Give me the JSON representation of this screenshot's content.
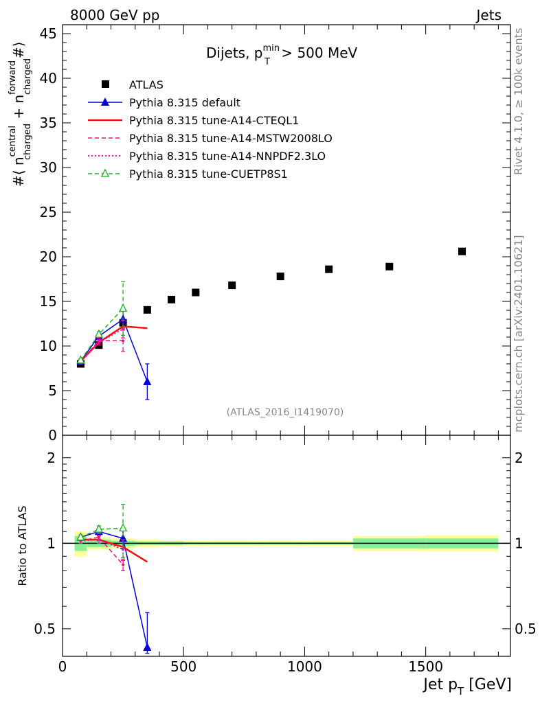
{
  "header": {
    "left": "8000 GeV pp",
    "right": "Jets"
  },
  "side_labels": {
    "rivet": "Rivet 4.1.0, ≥ 100k events",
    "mcplots": "mcplots.cern.ch [arXiv:2401.10621]"
  },
  "chart_data": [
    {
      "type": "line",
      "panel": "main",
      "title": "Dijets, p_T^min > 500 MeV",
      "title_parts": {
        "main": "Dijets, p",
        "sup": "min",
        "sub": "T",
        "tail": " > 500 MeV"
      },
      "ylabel": "#⟨ n^central_charged + n^forward_charged #⟩",
      "ylabel_parts": {
        "pre": "#⟨ n",
        "sup1": "central",
        "sub1": "charged",
        "mid": " + n",
        "sup2": "forward",
        "sub2": "charged",
        "post": "#⟩"
      },
      "xlim": [
        0,
        1850
      ],
      "ylim": [
        0,
        46
      ],
      "yticks": [
        "0",
        "5",
        "10",
        "15",
        "20",
        "25",
        "30",
        "35",
        "40",
        "45"
      ],
      "watermark": "(ATLAS_2016_I1419070)",
      "legend_position": "top-left",
      "series": [
        {
          "name": "ATLAS",
          "style": "data",
          "color": "#000000",
          "points": [
            [
              75,
              8.0
            ],
            [
              150,
              10.1
            ],
            [
              250,
              12.6
            ],
            [
              350,
              14.05
            ],
            [
              450,
              15.2
            ],
            [
              550,
              16.0
            ],
            [
              700,
              16.8
            ],
            [
              900,
              17.8
            ],
            [
              1100,
              18.6
            ],
            [
              1350,
              18.9
            ],
            [
              1650,
              20.6
            ]
          ]
        },
        {
          "name": "Pythia 8.315 default",
          "style": "line-triangle",
          "color": "#0000dd",
          "points": [
            [
              75,
              8.3
            ],
            [
              150,
              11.1
            ],
            [
              250,
              13.0
            ],
            [
              350,
              6.0
            ]
          ],
          "errors": [
            0.2,
            0.3,
            1.0,
            2.0
          ]
        },
        {
          "name": "Pythia 8.315 tune-A14-CTEQL1",
          "style": "solid-thick",
          "color": "#ee1111",
          "points": [
            [
              75,
              8.3
            ],
            [
              150,
              10.4
            ],
            [
              250,
              12.2
            ],
            [
              350,
              12.0
            ]
          ]
        },
        {
          "name": "Pythia 8.315 tune-A14-MSTW2008LO",
          "style": "dashed",
          "color": "#ee1177",
          "points": [
            [
              75,
              8.3
            ],
            [
              150,
              10.6
            ],
            [
              250,
              10.6
            ]
          ],
          "errors": [
            0.2,
            0.3,
            1.2
          ]
        },
        {
          "name": "Pythia 8.315 tune-A14-NNPDF2.3LO",
          "style": "dotted",
          "color": "#ee11aa",
          "points": [
            [
              75,
              8.2
            ],
            [
              150,
              10.4
            ],
            [
              250,
              11.9
            ]
          ],
          "errors": [
            0.2,
            0.3,
            1.0
          ]
        },
        {
          "name": "Pythia 8.315 tune-CUETP8S1",
          "style": "dashed-open-triangle",
          "color": "#22aa22",
          "points": [
            [
              75,
              8.4
            ],
            [
              150,
              11.3
            ],
            [
              250,
              14.2
            ]
          ],
          "errors": [
            0.2,
            0.3,
            3.0
          ]
        }
      ]
    },
    {
      "type": "line",
      "panel": "ratio",
      "ylabel": "Ratio to ATLAS",
      "xlabel": "Jet p_T [GeV]",
      "xlabel_parts": {
        "main": "Jet p",
        "sub": "T",
        "tail": " [GeV]"
      },
      "xlim": [
        0,
        1850
      ],
      "ylim": [
        0.4,
        2.4
      ],
      "log_y": true,
      "yticks": [
        "0.5",
        "1",
        "2"
      ],
      "xticks": [
        "0",
        "500",
        "1000",
        "1500"
      ],
      "bands": [
        {
          "x": [
            50,
            100
          ],
          "inner": [
            0.94,
            1.06
          ],
          "outer": [
            0.9,
            1.1
          ]
        },
        {
          "x": [
            100,
            200
          ],
          "inner": [
            0.97,
            1.03
          ],
          "outer": [
            0.95,
            1.05
          ]
        },
        {
          "x": [
            200,
            300
          ],
          "inner": [
            0.98,
            1.02
          ],
          "outer": [
            0.96,
            1.04
          ]
        },
        {
          "x": [
            300,
            400
          ],
          "inner": [
            0.985,
            1.015
          ],
          "outer": [
            0.97,
            1.03
          ]
        },
        {
          "x": [
            400,
            500
          ],
          "inner": [
            0.985,
            1.015
          ],
          "outer": [
            0.975,
            1.025
          ]
        },
        {
          "x": [
            500,
            600
          ],
          "inner": [
            0.99,
            1.01
          ],
          "outer": [
            0.98,
            1.02
          ]
        },
        {
          "x": [
            600,
            800
          ],
          "inner": [
            0.99,
            1.01
          ],
          "outer": [
            0.98,
            1.02
          ]
        },
        {
          "x": [
            800,
            1000
          ],
          "inner": [
            0.99,
            1.01
          ],
          "outer": [
            0.98,
            1.02
          ]
        },
        {
          "x": [
            1000,
            1200
          ],
          "inner": [
            0.99,
            1.01
          ],
          "outer": [
            0.98,
            1.02
          ]
        },
        {
          "x": [
            1200,
            1500
          ],
          "inner": [
            0.96,
            1.04
          ],
          "outer": [
            0.94,
            1.06
          ]
        },
        {
          "x": [
            1500,
            1800
          ],
          "inner": [
            0.96,
            1.04
          ],
          "outer": [
            0.935,
            1.065
          ]
        }
      ],
      "series": [
        {
          "name": "Pythia 8.315 default",
          "color": "#0000dd",
          "style": "line-triangle",
          "points": [
            [
              75,
              1.05
            ],
            [
              150,
              1.1
            ],
            [
              250,
              1.04
            ],
            [
              350,
              0.43
            ]
          ],
          "errors": [
            0.02,
            0.03,
            0.08,
            0.14
          ]
        },
        {
          "name": "Pythia 8.315 tune-A14-CTEQL1",
          "color": "#ee1111",
          "style": "solid-thick",
          "points": [
            [
              75,
              1.03
            ],
            [
              150,
              1.03
            ],
            [
              250,
              0.97
            ],
            [
              350,
              0.86
            ]
          ]
        },
        {
          "name": "Pythia 8.315 tune-A14-MSTW2008LO",
          "color": "#ee1177",
          "style": "dashed",
          "points": [
            [
              75,
              1.02
            ],
            [
              150,
              1.05
            ],
            [
              250,
              0.84
            ]
          ],
          "errors": [
            0.02,
            0.03,
            0.04
          ]
        },
        {
          "name": "Pythia 8.315 tune-A14-NNPDF2.3LO",
          "color": "#ee11aa",
          "style": "dotted",
          "points": [
            [
              75,
              1.02
            ],
            [
              150,
              1.03
            ],
            [
              250,
              0.95
            ]
          ],
          "errors": [
            0.02,
            0.03,
            0.08
          ]
        },
        {
          "name": "Pythia 8.315 tune-CUETP8S1",
          "color": "#22aa22",
          "style": "dashed-open-triangle",
          "points": [
            [
              75,
              1.05
            ],
            [
              150,
              1.12
            ],
            [
              250,
              1.13
            ]
          ],
          "errors": [
            0.02,
            0.03,
            0.24
          ]
        }
      ]
    }
  ]
}
